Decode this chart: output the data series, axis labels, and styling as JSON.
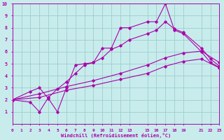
{
  "background_color": "#c8ecec",
  "grid_color": "#9ecece",
  "line_color": "#aa00aa",
  "xlabel": "Windchill (Refroidissement éolien,°C)",
  "xlim": [
    0,
    23
  ],
  "ylim": [
    0,
    10
  ],
  "xtick_values": [
    0,
    1,
    2,
    3,
    4,
    5,
    6,
    7,
    8,
    9,
    10,
    11,
    12,
    13,
    15,
    16,
    17,
    18,
    19,
    21,
    22,
    23
  ],
  "ytick_values": [
    1,
    2,
    3,
    4,
    5,
    6,
    7,
    8,
    9,
    10
  ],
  "lines": [
    {
      "x": [
        0,
        2,
        3,
        4,
        5,
        6,
        7,
        8,
        9,
        10,
        11,
        12,
        13,
        15,
        16,
        17,
        18,
        19,
        21,
        22,
        23
      ],
      "y": [
        2,
        2.7,
        3.0,
        2.1,
        1.0,
        3.0,
        4.9,
        5.0,
        5.1,
        6.3,
        6.3,
        8.0,
        8.0,
        8.5,
        8.5,
        10.0,
        7.8,
        7.5,
        6.0,
        5.1,
        4.7
      ]
    },
    {
      "x": [
        0,
        2,
        3,
        4,
        5,
        6,
        7,
        8,
        9,
        10,
        11,
        12,
        13,
        15,
        16,
        17,
        18,
        19,
        21,
        22,
        23
      ],
      "y": [
        2,
        1.8,
        1.0,
        2.2,
        2.9,
        3.5,
        4.2,
        4.9,
        5.1,
        5.5,
        6.2,
        6.5,
        7.0,
        7.5,
        7.8,
        8.5,
        7.9,
        7.6,
        6.3,
        5.4,
        4.8
      ]
    },
    {
      "x": [
        0,
        3,
        6,
        9,
        12,
        15,
        17,
        19,
        21,
        23
      ],
      "y": [
        2,
        2.5,
        3.1,
        3.6,
        4.2,
        4.9,
        5.5,
        5.9,
        6.05,
        5.1
      ]
    },
    {
      "x": [
        0,
        3,
        6,
        9,
        12,
        15,
        17,
        19,
        21,
        23
      ],
      "y": [
        2,
        2.2,
        2.8,
        3.2,
        3.7,
        4.2,
        4.8,
        5.2,
        5.4,
        4.65
      ]
    }
  ]
}
